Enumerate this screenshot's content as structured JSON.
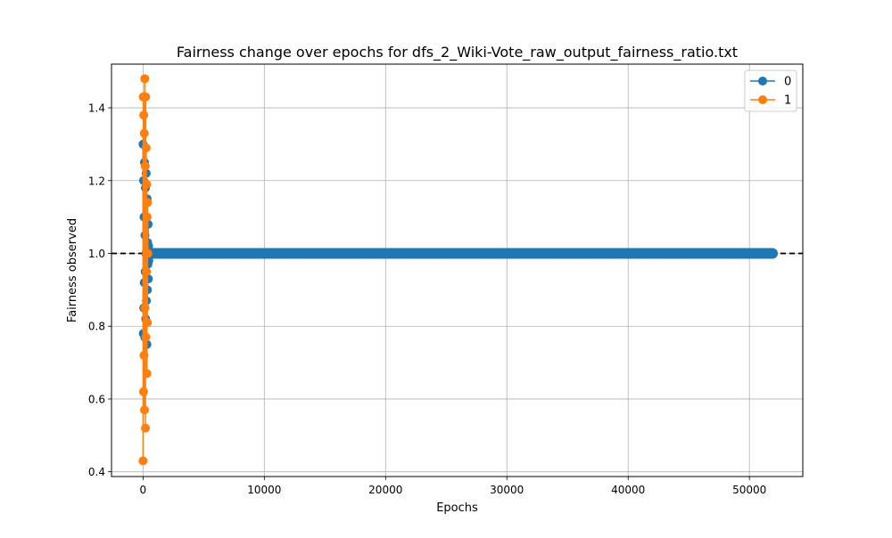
{
  "chart_data": {
    "type": "line",
    "title": "Fairness change over epochs for dfs_2_Wiki-Vote_raw_output_fairness_ratio.txt",
    "xlabel": "Epochs",
    "ylabel": "Fairness observed",
    "xlim": [
      -2600,
      54400
    ],
    "ylim": [
      0.387,
      1.52
    ],
    "xticks": [
      0,
      10000,
      20000,
      30000,
      40000,
      50000
    ],
    "yticks": [
      0.4,
      0.6,
      0.8,
      1.0,
      1.2,
      1.4
    ],
    "grid": true,
    "legend_position": "top-right",
    "reference_line": {
      "y": 1.0,
      "style": "dashed",
      "color": "#000000"
    },
    "series": [
      {
        "name": "0",
        "color": "#1f77b4",
        "marker": "circle",
        "x": [
          0,
          20,
          40,
          60,
          80,
          100,
          120,
          140,
          160,
          180,
          200,
          220,
          240,
          260,
          280,
          300,
          320,
          340,
          360,
          380,
          400,
          420,
          440,
          460,
          480,
          500,
          520,
          540,
          560,
          580,
          600,
          650,
          700,
          800,
          1000,
          2000,
          3000,
          4000,
          5000,
          6000,
          7000,
          8000,
          9000,
          10000,
          11000,
          12000,
          13000,
          14000,
          15000,
          16000,
          17000,
          18000,
          19000,
          20000,
          21000,
          22000,
          23000,
          24000,
          25000,
          26000,
          27000,
          28000,
          29000,
          30000,
          31000,
          32000,
          33000,
          34000,
          35000,
          36000,
          37000,
          38000,
          39000,
          40000,
          41000,
          42000,
          43000,
          44000,
          45000,
          46000,
          47000,
          48000,
          49000,
          50000,
          51000,
          51900
        ],
        "y": [
          1.3,
          0.78,
          1.2,
          0.85,
          1.1,
          0.92,
          1.25,
          0.77,
          1.05,
          0.95,
          1.18,
          0.82,
          1.0,
          1.22,
          0.87,
          1.1,
          0.75,
          1.15,
          0.9,
          1.03,
          0.97,
          1.08,
          0.93,
          1.02,
          0.98,
          1.0,
          1.0,
          1.0,
          1.0,
          1.0,
          1.0,
          1.0,
          1.0,
          1.0,
          1.0,
          1.0,
          1.0,
          1.0,
          1.0,
          1.0,
          1.0,
          1.0,
          1.0,
          1.0,
          1.0,
          1.0,
          1.0,
          1.0,
          1.0,
          1.0,
          1.0,
          1.0,
          1.0,
          1.0,
          1.0,
          1.0,
          1.0,
          1.0,
          1.0,
          1.0,
          1.0,
          1.0,
          1.0,
          1.0,
          1.0,
          1.0,
          1.0,
          1.0,
          1.0,
          1.0,
          1.0,
          1.0,
          1.0,
          1.0,
          1.0,
          1.0,
          1.0,
          1.0,
          1.0,
          1.0,
          1.0,
          1.0,
          1.0,
          1.0,
          1.0,
          1.0
        ]
      },
      {
        "name": "1",
        "color": "#ff7f0e",
        "marker": "circle",
        "x": [
          0,
          20,
          40,
          60,
          80,
          100,
          120,
          140,
          160,
          180,
          200,
          220,
          240,
          260,
          280,
          300,
          320,
          340,
          360,
          380,
          400
        ],
        "y": [
          0.43,
          1.43,
          0.62,
          1.38,
          0.72,
          1.33,
          0.57,
          1.48,
          0.85,
          1.24,
          0.52,
          1.43,
          0.77,
          1.29,
          0.95,
          1.19,
          0.67,
          1.1,
          0.81,
          1.14,
          1.0
        ]
      }
    ]
  }
}
